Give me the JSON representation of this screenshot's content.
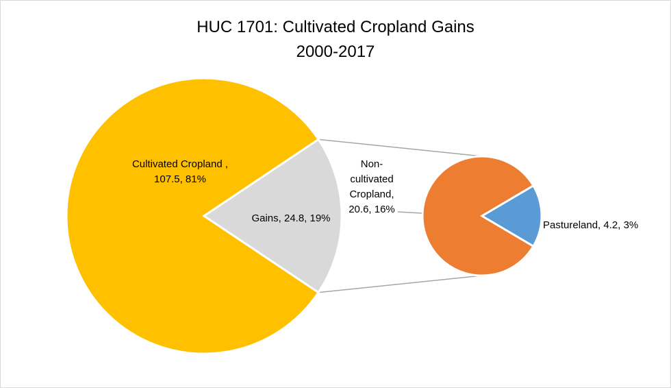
{
  "chart_data": {
    "type": "pie",
    "subtype": "pie-of-pie",
    "title": [
      "HUC 1701: Cultivated Cropland Gains",
      "2000-2017"
    ],
    "main_pie": {
      "slices": [
        {
          "name": "Cultivated Cropland ,",
          "value": 107.5,
          "percent": "81%",
          "color": "#FFC000",
          "label_lines": [
            "Cultivated Cropland ,",
            "107.5, 81%"
          ]
        },
        {
          "name": "Gains",
          "value": 24.8,
          "percent": "19%",
          "color": "#D9D9D9",
          "label_lines": [
            "Gains, 24.8, 19%"
          ]
        }
      ]
    },
    "secondary_pie": {
      "slices": [
        {
          "name": "Non-cultivated Cropland",
          "value": 20.6,
          "percent": "16%",
          "color": "#ED7D31",
          "label_lines": [
            "Non-",
            "cultivated",
            "Cropland,",
            "20.6, 16%"
          ]
        },
        {
          "name": "Pastureland",
          "value": 4.2,
          "percent": "3%",
          "color": "#5B9BD5",
          "label_lines": [
            "Pastureland, 4.2, 3%"
          ]
        }
      ]
    },
    "colors": {
      "connector": "#a6a6a6",
      "slice_border": "#ffffff",
      "leader_line": "#a6a6a6"
    }
  }
}
